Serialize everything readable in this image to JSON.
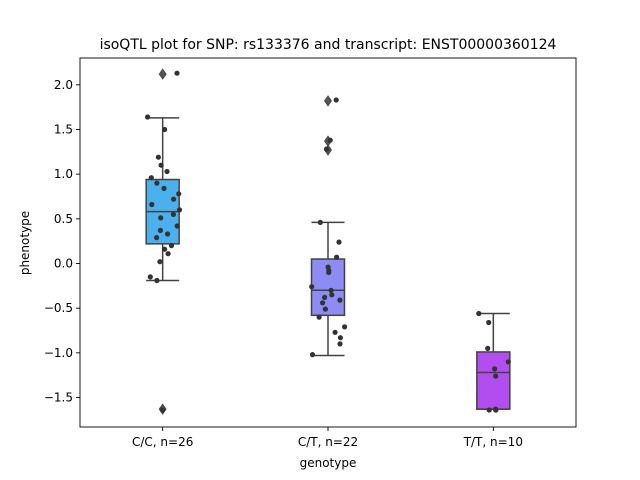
{
  "chart_data": {
    "type": "box",
    "title": "isoQTL plot for SNP: rs133376 and transcript: ENST00000360124",
    "xlabel": "genotype",
    "ylabel": "phenotype",
    "categories": [
      "C/C, n=26",
      "C/T, n=22",
      "T/T, n=10"
    ],
    "ylim": [
      -1.83,
      2.3
    ],
    "yticks": [
      -1.5,
      -1.0,
      -0.5,
      0.0,
      0.5,
      1.0,
      1.5,
      2.0
    ],
    "ytick_labels": [
      "−1.5",
      "−1.0",
      "−0.5",
      "0.0",
      "0.5",
      "1.0",
      "1.5",
      "2.0"
    ],
    "grid": false,
    "colors": {
      "box_fills": [
        "#4bb0ec",
        "#8c8cf4",
        "#b24ef0"
      ],
      "box_edge": "#424242",
      "points": "#333333"
    },
    "boxes": [
      {
        "q1": 0.22,
        "median": 0.58,
        "q3": 0.94,
        "whisker_low": -0.19,
        "whisker_high": 1.63,
        "outliers": [
          2.12,
          -1.63
        ]
      },
      {
        "q1": -0.58,
        "median": -0.3,
        "q3": 0.05,
        "whisker_low": -1.03,
        "whisker_high": 0.46,
        "outliers": [
          1.82,
          1.37,
          1.27
        ]
      },
      {
        "q1": -1.63,
        "median": -1.22,
        "q3": -0.99,
        "whisker_low": -1.63,
        "whisker_high": -0.56,
        "outliers": []
      }
    ],
    "points": [
      [
        2.13,
        1.64,
        1.5,
        1.19,
        1.1,
        1.03,
        0.96,
        0.9,
        0.84,
        0.78,
        0.72,
        0.66,
        0.6,
        0.55,
        0.51,
        0.42,
        0.37,
        0.33,
        0.29,
        0.2,
        0.16,
        0.11,
        0.02,
        -0.15,
        -0.19,
        -1.64
      ],
      [
        1.83,
        1.38,
        1.28,
        0.46,
        0.24,
        0.07,
        -0.04,
        -0.08,
        -0.1,
        -0.26,
        -0.3,
        -0.35,
        -0.38,
        -0.41,
        -0.44,
        -0.51,
        -0.6,
        -0.71,
        -0.77,
        -0.83,
        -0.9,
        -1.02
      ],
      [
        -0.56,
        -0.66,
        -0.95,
        -1.1,
        -1.18,
        -1.26,
        -1.63,
        -1.64,
        -1.64,
        -1.64
      ]
    ]
  }
}
